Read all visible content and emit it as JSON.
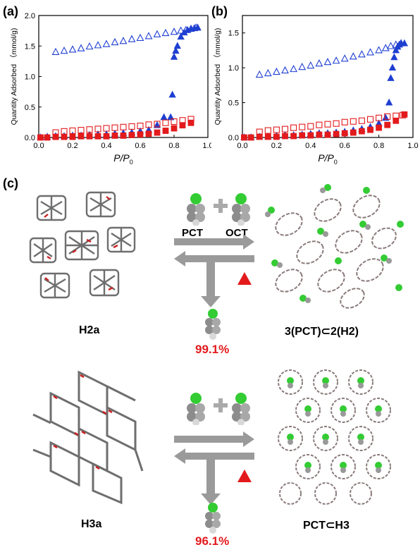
{
  "panels": {
    "a": "(a)",
    "b": "(b)",
    "c": "(c)"
  },
  "chart_data": [
    {
      "type": "scatter",
      "xlabel": "P/P0",
      "ylabel": "Quantity Adsorbed （mmol/g)",
      "xlim": [
        0.0,
        1.0
      ],
      "ylim": [
        0.0,
        2.0
      ],
      "xticks": [
        "0.0",
        "0.2",
        "0.4",
        "0.6",
        "0.8",
        "1.0"
      ],
      "yticks": [
        "0.0",
        "0.5",
        "1.0",
        "1.5",
        "2.0"
      ],
      "series": [
        {
          "marker": "triangle-open",
          "color": "#1f3fd1",
          "x": [
            0.1,
            0.15,
            0.2,
            0.25,
            0.3,
            0.35,
            0.4,
            0.45,
            0.5,
            0.55,
            0.6,
            0.65,
            0.7,
            0.75,
            0.8,
            0.84,
            0.87,
            0.9,
            0.93
          ],
          "y": [
            1.4,
            1.42,
            1.44,
            1.46,
            1.49,
            1.51,
            1.53,
            1.56,
            1.58,
            1.61,
            1.63,
            1.66,
            1.69,
            1.71,
            1.73,
            1.75,
            1.76,
            1.78,
            1.8
          ]
        },
        {
          "marker": "triangle-filled",
          "color": "#1f3fd1",
          "x": [
            0.01,
            0.05,
            0.1,
            0.15,
            0.2,
            0.25,
            0.3,
            0.35,
            0.4,
            0.45,
            0.5,
            0.55,
            0.6,
            0.65,
            0.7,
            0.74,
            0.78,
            0.79,
            0.8,
            0.81,
            0.82,
            0.84,
            0.86,
            0.88,
            0.9,
            0.92,
            0.94
          ],
          "y": [
            0.0,
            0.01,
            0.02,
            0.02,
            0.03,
            0.03,
            0.04,
            0.05,
            0.05,
            0.06,
            0.07,
            0.08,
            0.1,
            0.12,
            0.2,
            0.33,
            0.33,
            0.7,
            1.32,
            1.42,
            1.5,
            1.65,
            1.72,
            1.76,
            1.78,
            1.79,
            1.8
          ]
        },
        {
          "marker": "square-open",
          "color": "#e31a1c",
          "x": [
            0.1,
            0.15,
            0.2,
            0.25,
            0.3,
            0.35,
            0.4,
            0.45,
            0.5,
            0.55,
            0.6,
            0.65,
            0.7,
            0.75,
            0.8,
            0.85,
            0.9
          ],
          "y": [
            0.08,
            0.1,
            0.11,
            0.12,
            0.13,
            0.14,
            0.15,
            0.16,
            0.17,
            0.18,
            0.19,
            0.21,
            0.22,
            0.24,
            0.26,
            0.28,
            0.3
          ]
        },
        {
          "marker": "square-filled",
          "color": "#e31a1c",
          "x": [
            0.01,
            0.05,
            0.1,
            0.15,
            0.2,
            0.25,
            0.3,
            0.35,
            0.4,
            0.45,
            0.5,
            0.55,
            0.6,
            0.65,
            0.7,
            0.75,
            0.8,
            0.85,
            0.9
          ],
          "y": [
            0.0,
            0.0,
            0.01,
            0.01,
            0.01,
            0.02,
            0.02,
            0.02,
            0.02,
            0.03,
            0.03,
            0.04,
            0.05,
            0.06,
            0.08,
            0.11,
            0.15,
            0.2,
            0.24
          ]
        }
      ]
    },
    {
      "type": "scatter",
      "xlabel": "P/P0",
      "ylabel": "Quantity Adsorbed （mmol/g)",
      "xlim": [
        0.0,
        1.0
      ],
      "ylim": [
        0.0,
        1.75
      ],
      "xticks": [
        "0.0",
        "0.2",
        "0.4",
        "0.6",
        "0.8",
        "1.0"
      ],
      "yticks": [
        "0.0",
        "0.5",
        "1.0",
        "1.5"
      ],
      "series": [
        {
          "marker": "triangle-open",
          "color": "#1f3fd1",
          "x": [
            0.1,
            0.15,
            0.2,
            0.25,
            0.3,
            0.35,
            0.4,
            0.45,
            0.5,
            0.55,
            0.6,
            0.65,
            0.7,
            0.75,
            0.8,
            0.84,
            0.87,
            0.9,
            0.93
          ],
          "y": [
            0.9,
            0.92,
            0.94,
            0.96,
            0.98,
            1.01,
            1.03,
            1.06,
            1.08,
            1.1,
            1.13,
            1.16,
            1.19,
            1.22,
            1.25,
            1.28,
            1.31,
            1.33,
            1.35
          ]
        },
        {
          "marker": "triangle-filled",
          "color": "#1f3fd1",
          "x": [
            0.01,
            0.05,
            0.1,
            0.15,
            0.2,
            0.25,
            0.3,
            0.35,
            0.4,
            0.45,
            0.5,
            0.55,
            0.6,
            0.65,
            0.7,
            0.75,
            0.8,
            0.84,
            0.86,
            0.87,
            0.88,
            0.89,
            0.9,
            0.91,
            0.92,
            0.93,
            0.95
          ],
          "y": [
            0.0,
            0.0,
            0.01,
            0.01,
            0.02,
            0.03,
            0.03,
            0.04,
            0.05,
            0.06,
            0.06,
            0.07,
            0.08,
            0.1,
            0.12,
            0.15,
            0.2,
            0.28,
            0.5,
            0.85,
            1.0,
            1.15,
            1.25,
            1.3,
            1.33,
            1.35,
            1.35
          ]
        },
        {
          "marker": "square-open",
          "color": "#e31a1c",
          "x": [
            0.1,
            0.15,
            0.2,
            0.25,
            0.3,
            0.35,
            0.4,
            0.45,
            0.5,
            0.55,
            0.6,
            0.65,
            0.7,
            0.75,
            0.8,
            0.85,
            0.9,
            0.94
          ],
          "y": [
            0.08,
            0.1,
            0.11,
            0.12,
            0.14,
            0.15,
            0.16,
            0.18,
            0.19,
            0.2,
            0.22,
            0.23,
            0.24,
            0.26,
            0.28,
            0.3,
            0.31,
            0.32
          ]
        },
        {
          "marker": "square-filled",
          "color": "#e31a1c",
          "x": [
            0.01,
            0.05,
            0.1,
            0.15,
            0.2,
            0.25,
            0.3,
            0.35,
            0.4,
            0.45,
            0.5,
            0.55,
            0.6,
            0.65,
            0.7,
            0.75,
            0.8,
            0.85,
            0.9,
            0.95
          ],
          "y": [
            0.0,
            0.0,
            0.01,
            0.01,
            0.01,
            0.02,
            0.02,
            0.03,
            0.03,
            0.04,
            0.04,
            0.05,
            0.06,
            0.07,
            0.09,
            0.11,
            0.14,
            0.18,
            0.24,
            0.33
          ]
        }
      ]
    }
  ],
  "scheme": {
    "row1": {
      "left_label": "H2a",
      "gas1": "PCT",
      "gas2": "OCT",
      "product_label": "3(PCT)⊂2(H2)",
      "yield": "99.1%"
    },
    "row2": {
      "left_label": "H3a",
      "product_label": "PCT⊂H3",
      "yield": "96.1%"
    }
  },
  "colors": {
    "open_blue": "#1f3fd1",
    "red": "#e31a1c",
    "arrow_gray": "#9a9a9a",
    "halogen_green": "#33cc33"
  }
}
